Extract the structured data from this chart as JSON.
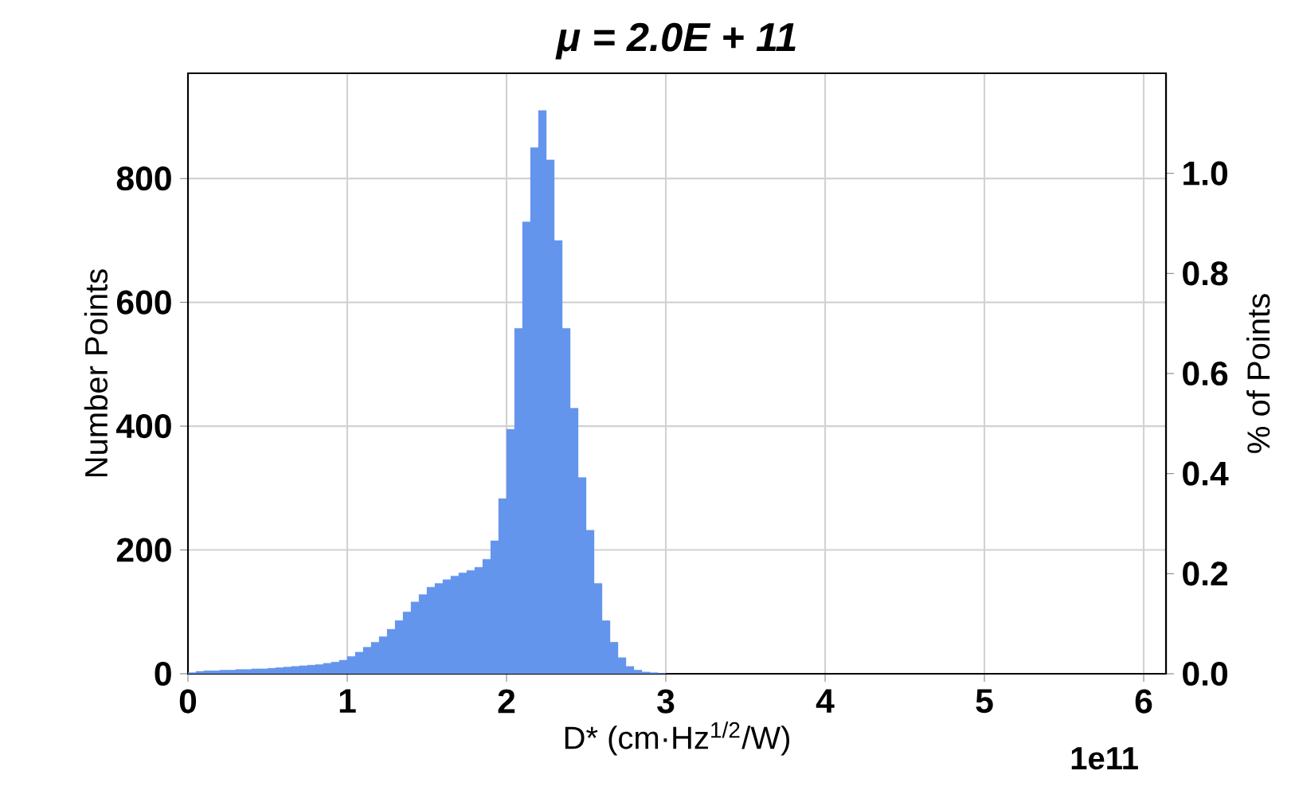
{
  "chart_data": {
    "type": "histogram",
    "title": "μ = 2.0E + 11",
    "xlabel": "D* (cm·Hz$^{1/2}$/W)",
    "ylabel": "Number Points",
    "y2label": "% of Points",
    "annotations": [
      "1e11"
    ],
    "color": "#6495ed",
    "bins": [
      0.0,
      0.05,
      0.1,
      0.15,
      0.2,
      0.25,
      0.3,
      0.35,
      0.4,
      0.45,
      0.5,
      0.55,
      0.6,
      0.65,
      0.7,
      0.75,
      0.8,
      0.85,
      0.9,
      0.95,
      1.0,
      1.05,
      1.1,
      1.15,
      1.2,
      1.25,
      1.3,
      1.35,
      1.4,
      1.45,
      1.5,
      1.55,
      1.6,
      1.65,
      1.7,
      1.75,
      1.8,
      1.85,
      1.9,
      1.95,
      2.0,
      2.05,
      2.1,
      2.15,
      2.2,
      2.25,
      2.3,
      2.35,
      2.4,
      2.45,
      2.5,
      2.55,
      2.6,
      2.65,
      2.7,
      2.75,
      2.8,
      2.85,
      2.9,
      2.95,
      3.0
    ],
    "values": [
      2,
      4,
      5,
      5,
      6,
      6,
      7,
      7,
      8,
      8,
      9,
      10,
      11,
      12,
      13,
      14,
      15,
      17,
      19,
      22,
      28,
      35,
      43,
      51,
      60,
      72,
      86,
      100,
      116,
      128,
      140,
      146,
      152,
      158,
      163,
      167,
      172,
      185,
      215,
      283,
      395,
      558,
      730,
      850,
      910,
      830,
      700,
      558,
      429,
      317,
      232,
      146,
      86,
      51,
      26,
      12,
      6,
      3,
      2,
      1
    ],
    "xlim": [
      0,
      6.14
    ],
    "xticks": [
      0,
      1,
      2,
      3,
      4,
      5,
      6
    ],
    "ylim": [
      0,
      970
    ],
    "yticks": [
      0,
      200,
      400,
      600,
      800
    ],
    "y2lim": [
      0,
      1.2
    ],
    "y2ticks": [
      {
        "value": 0,
        "label": "0.0"
      },
      {
        "value": 0.2,
        "label": "0.2"
      },
      {
        "value": 0.4,
        "label": "0.4"
      },
      {
        "value": 0.6,
        "label": "0.6"
      },
      {
        "value": 0.8,
        "label": "0.8"
      },
      {
        "value": 1.0,
        "label": "1.0"
      }
    ],
    "grid": true
  }
}
